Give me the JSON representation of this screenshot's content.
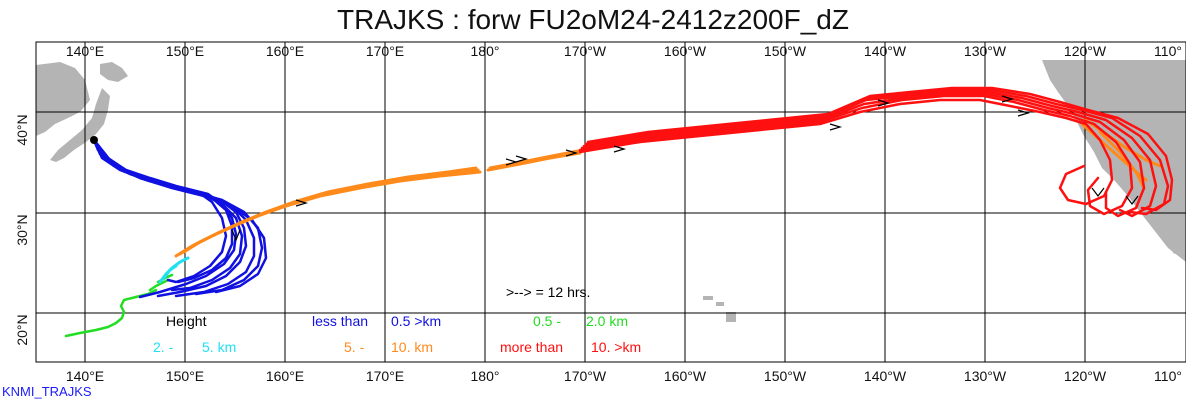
{
  "title": "TRAJKS : forw FU2oM24-2412z200F_dZ",
  "footer": "KNMI_TRAJKS",
  "axes": {
    "lon_ticks": [
      "140°E",
      "150°E",
      "160°E",
      "170°E",
      "180°",
      "170°W",
      "160°W",
      "150°W",
      "140°W",
      "130°W",
      "120°W",
      "110°"
    ],
    "lat_ticks": [
      "20°N",
      "30°N",
      "40°N"
    ]
  },
  "interval_note": ">--> = 12 hrs.",
  "legend": {
    "height_label": "Height",
    "less_than": "less than",
    "band1": "0.5 >km",
    "band2_low": "0.5 -",
    "band2_high": "2.0 km",
    "band3_low": "2. -",
    "band3_high": "5. km",
    "band4_low": "5. -",
    "band4_high": "10. km",
    "more_than": "more than",
    "band5": "10. >km"
  },
  "colors": {
    "band1": "#1010e0",
    "band2": "#22dd22",
    "band3": "#22e0f0",
    "band4": "#ff8a1c",
    "band5": "#ff1010",
    "land": "#b4b4b4",
    "grid": "#000000"
  },
  "chart_data": {
    "type": "map",
    "lon_range": [
      135,
      111
    ],
    "lat_range": [
      15,
      45
    ],
    "grid": true
  }
}
